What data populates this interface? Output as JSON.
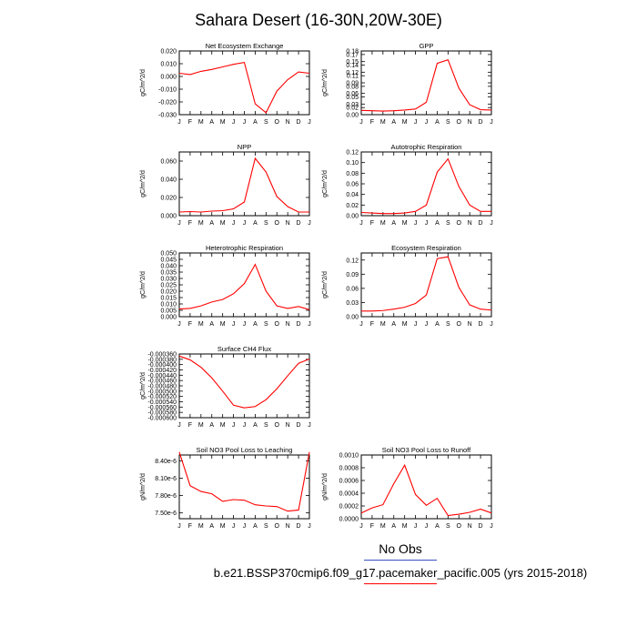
{
  "page": {
    "title": "Sahara Desert (16-30N,20W-30E)",
    "legend": {
      "obs_label": "No Obs",
      "obs_color": "#3a4fbf",
      "run_label": "b.e21.BSSP370cmip6.f09_g17.pacemaker_pacific.005 (yrs 2015-2018)",
      "run_color": "#ff0000"
    }
  },
  "chart_data": [
    {
      "type": "line",
      "title": "Net Ecosystem Exchange",
      "ylabel": "gC/m^2/d",
      "x": [
        "J",
        "F",
        "M",
        "A",
        "M",
        "J",
        "J",
        "A",
        "S",
        "O",
        "N",
        "D",
        "J"
      ],
      "yticks": [
        "-0.030",
        "-0.020",
        "-0.010",
        "0.000",
        "0.010",
        "0.020"
      ],
      "ylim": [
        -0.03,
        0.02
      ],
      "series": [
        {
          "color": "#ff0000",
          "values": [
            0.0025,
            0.0015,
            0.004,
            0.0055,
            0.0075,
            0.0095,
            0.011,
            -0.0215,
            -0.0285,
            -0.0115,
            -0.0025,
            0.0035,
            0.0025
          ]
        }
      ]
    },
    {
      "type": "line",
      "title": "GPP",
      "ylabel": "gC/m^2/d",
      "x": [
        "J",
        "F",
        "M",
        "A",
        "M",
        "J",
        "J",
        "A",
        "S",
        "O",
        "N",
        "D",
        "J"
      ],
      "yticks": [
        "0.00",
        "0.02",
        "0.03",
        "0.05",
        "0.06",
        "0.08",
        "0.09",
        "0.11",
        "0.12",
        "0.14",
        "0.15",
        "0.17",
        "0.18"
      ],
      "ylim": [
        0,
        0.18
      ],
      "series": [
        {
          "color": "#ff0000",
          "values": [
            0.012,
            0.011,
            0.01,
            0.011,
            0.013,
            0.016,
            0.035,
            0.145,
            0.155,
            0.075,
            0.028,
            0.014,
            0.013
          ]
        }
      ]
    },
    {
      "type": "line",
      "title": "NPP",
      "ylabel": "gC/m^2/d",
      "x": [
        "J",
        "F",
        "M",
        "A",
        "M",
        "J",
        "J",
        "A",
        "S",
        "O",
        "N",
        "D",
        "J"
      ],
      "yticks": [
        "0.000",
        "0.020",
        "0.040",
        "0.060"
      ],
      "ylim": [
        0,
        0.07
      ],
      "series": [
        {
          "color": "#ff0000",
          "values": [
            0.004,
            0.0045,
            0.004,
            0.005,
            0.0055,
            0.0075,
            0.015,
            0.063,
            0.048,
            0.021,
            0.01,
            0.004,
            0.004
          ]
        }
      ]
    },
    {
      "type": "line",
      "title": "Autotrophic Respiration",
      "ylabel": "gC/m^2/d",
      "x": [
        "J",
        "F",
        "M",
        "A",
        "M",
        "J",
        "J",
        "A",
        "S",
        "O",
        "N",
        "D",
        "J"
      ],
      "yticks": [
        "0.00",
        "0.02",
        "0.04",
        "0.06",
        "0.08",
        "0.10",
        "0.12"
      ],
      "ylim": [
        0,
        0.12
      ],
      "series": [
        {
          "color": "#ff0000",
          "values": [
            0.006,
            0.005,
            0.004,
            0.004,
            0.005,
            0.008,
            0.02,
            0.082,
            0.107,
            0.055,
            0.02,
            0.008,
            0.008
          ]
        }
      ]
    },
    {
      "type": "line",
      "title": "Heterotrophic Respiration",
      "ylabel": "gC/m^2/d",
      "x": [
        "J",
        "F",
        "M",
        "A",
        "M",
        "J",
        "J",
        "A",
        "S",
        "O",
        "N",
        "D",
        "J"
      ],
      "yticks": [
        "0.000",
        "0.005",
        "0.010",
        "0.015",
        "0.020",
        "0.025",
        "0.030",
        "0.035",
        "0.040",
        "0.045",
        "0.050"
      ],
      "ylim": [
        0,
        0.05
      ],
      "series": [
        {
          "color": "#ff0000",
          "values": [
            0.006,
            0.0065,
            0.0085,
            0.0115,
            0.0135,
            0.018,
            0.026,
            0.041,
            0.02,
            0.0085,
            0.0065,
            0.008,
            0.0055
          ]
        }
      ]
    },
    {
      "type": "line",
      "title": "Ecosystem Respiration",
      "ylabel": "gC/m^2/d",
      "x": [
        "J",
        "F",
        "M",
        "A",
        "M",
        "J",
        "J",
        "A",
        "S",
        "O",
        "N",
        "D",
        "J"
      ],
      "yticks": [
        "0.00",
        "0.03",
        "0.06",
        "0.09",
        "0.12"
      ],
      "ylim": [
        0,
        0.135
      ],
      "series": [
        {
          "color": "#ff0000",
          "values": [
            0.012,
            0.012,
            0.013,
            0.016,
            0.02,
            0.028,
            0.046,
            0.123,
            0.127,
            0.062,
            0.025,
            0.016,
            0.014
          ]
        }
      ]
    },
    {
      "type": "line",
      "title": "Surface CH4 Flux",
      "ylabel": "gC/m^2/d",
      "x": [
        "J",
        "F",
        "M",
        "A",
        "M",
        "J",
        "J",
        "A",
        "S",
        "O",
        "N",
        "D",
        "J"
      ],
      "yticks": [
        "-0.000600",
        "-0.000580",
        "-0.000560",
        "-0.000540",
        "-0.000520",
        "-0.000500",
        "-0.000480",
        "-0.000460",
        "-0.000440",
        "-0.000420",
        "-0.000400",
        "-0.000380",
        "-0.000360"
      ],
      "ylim": [
        -0.0006,
        -0.00036
      ],
      "series": [
        {
          "color": "#ff0000",
          "values": [
            -0.000368,
            -0.000382,
            -0.00041,
            -0.00045,
            -0.0005,
            -0.000553,
            -0.000563,
            -0.000558,
            -0.000532,
            -0.000491,
            -0.000442,
            -0.000395,
            -0.000379
          ]
        }
      ]
    },
    {
      "type": "line",
      "title": "Soil NO3 Pool Loss to Leaching",
      "ylabel": "gN/m^2/d",
      "x": [
        "J",
        "F",
        "M",
        "A",
        "M",
        "J",
        "J",
        "A",
        "S",
        "O",
        "N",
        "D",
        "J"
      ],
      "yticks": [
        "7.50e-6",
        "7.80e-6",
        "8.10e-6",
        "8.40e-6"
      ],
      "ylim": [
        7.4e-06,
        8.5e-06
      ],
      "series": [
        {
          "color": "#ff0000",
          "values": [
            8.55e-06,
            7.97e-06,
            7.87e-06,
            7.83e-06,
            7.7e-06,
            7.73e-06,
            7.72e-06,
            7.64e-06,
            7.62e-06,
            7.61e-06,
            7.53e-06,
            7.55e-06,
            8.55e-06
          ]
        }
      ]
    },
    {
      "type": "line",
      "title": "Soil NO3 Pool Loss to Runoff",
      "ylabel": "gN/m^2/d",
      "x": [
        "J",
        "F",
        "M",
        "A",
        "M",
        "J",
        "J",
        "A",
        "S",
        "O",
        "N",
        "D",
        "J"
      ],
      "yticks": [
        "0.0000",
        "0.0002",
        "0.0004",
        "0.0006",
        "0.0008",
        "0.0010"
      ],
      "ylim": [
        0,
        0.001
      ],
      "series": [
        {
          "color": "#ff0000",
          "values": [
            9e-05,
            0.00017,
            0.00022,
            0.00055,
            0.00084,
            0.00038,
            0.00021,
            0.00032,
            5e-05,
            7e-05,
            0.0001,
            0.00015,
            9e-05
          ]
        }
      ]
    }
  ]
}
